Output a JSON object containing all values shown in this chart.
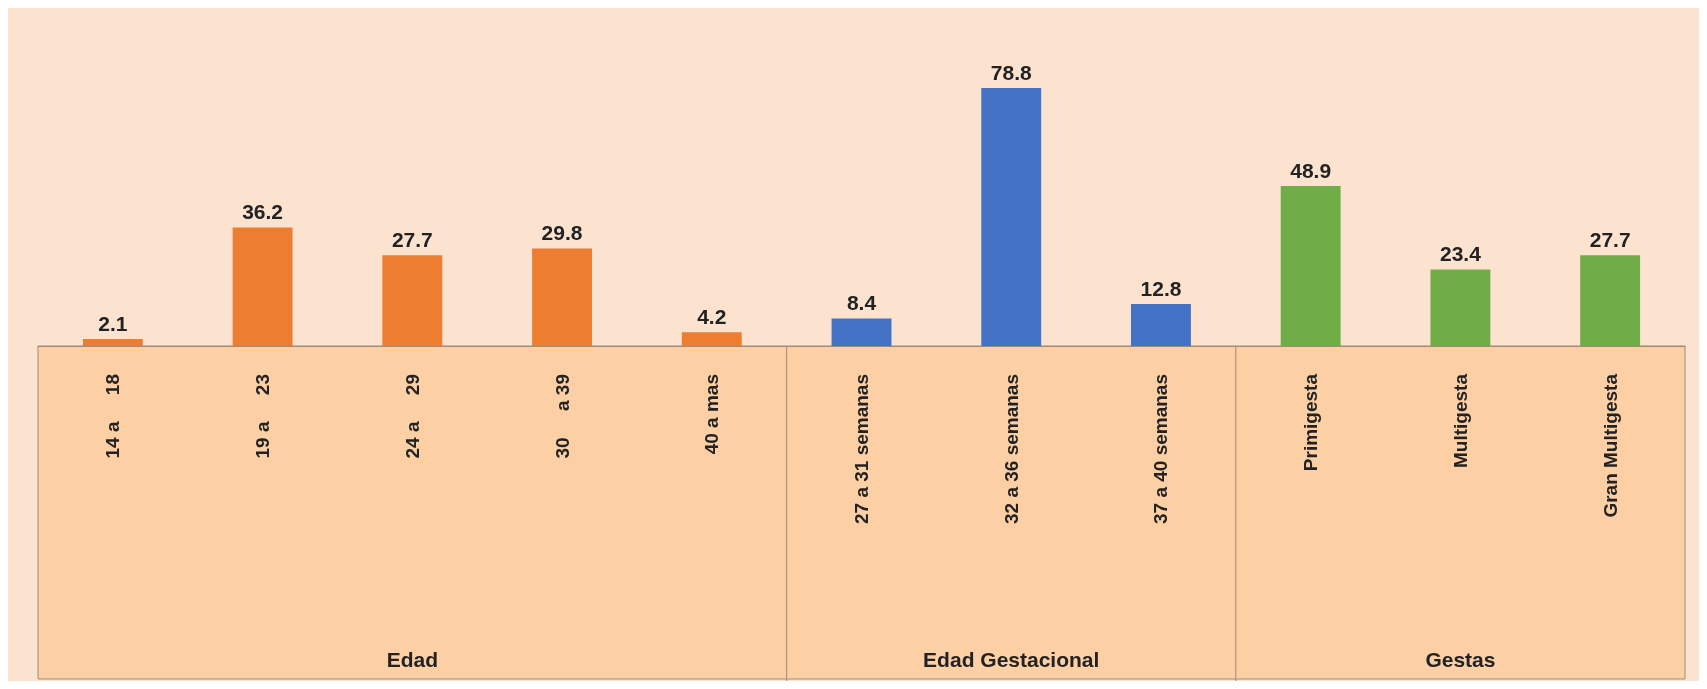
{
  "chart_data": {
    "type": "bar",
    "categories": [
      "14 a     18",
      "19 a     23",
      "24 a     29",
      "30     a 39",
      "40 a mas",
      "27 a 31 semanas",
      "32 a 36 semanas",
      "37 a 40 semanas",
      "Primigesta",
      "Multigesta",
      "Gran Multigesta"
    ],
    "series": [
      {
        "color": "#ed7d31",
        "values": [
          2.1,
          36.2,
          27.7,
          29.8,
          4.2,
          null,
          null,
          null,
          null,
          null,
          null
        ]
      },
      {
        "color": "#4472c4",
        "values": [
          null,
          null,
          null,
          null,
          null,
          8.4,
          78.8,
          12.8,
          null,
          null,
          null
        ]
      },
      {
        "color": "#70ad47",
        "values": [
          null,
          null,
          null,
          null,
          null,
          null,
          null,
          null,
          48.9,
          23.4,
          27.7
        ]
      }
    ],
    "annotations": [
      "Edad",
      "Edad Gestacional",
      "Gestas"
    ],
    "data_labels": true,
    "grid": false
  }
}
